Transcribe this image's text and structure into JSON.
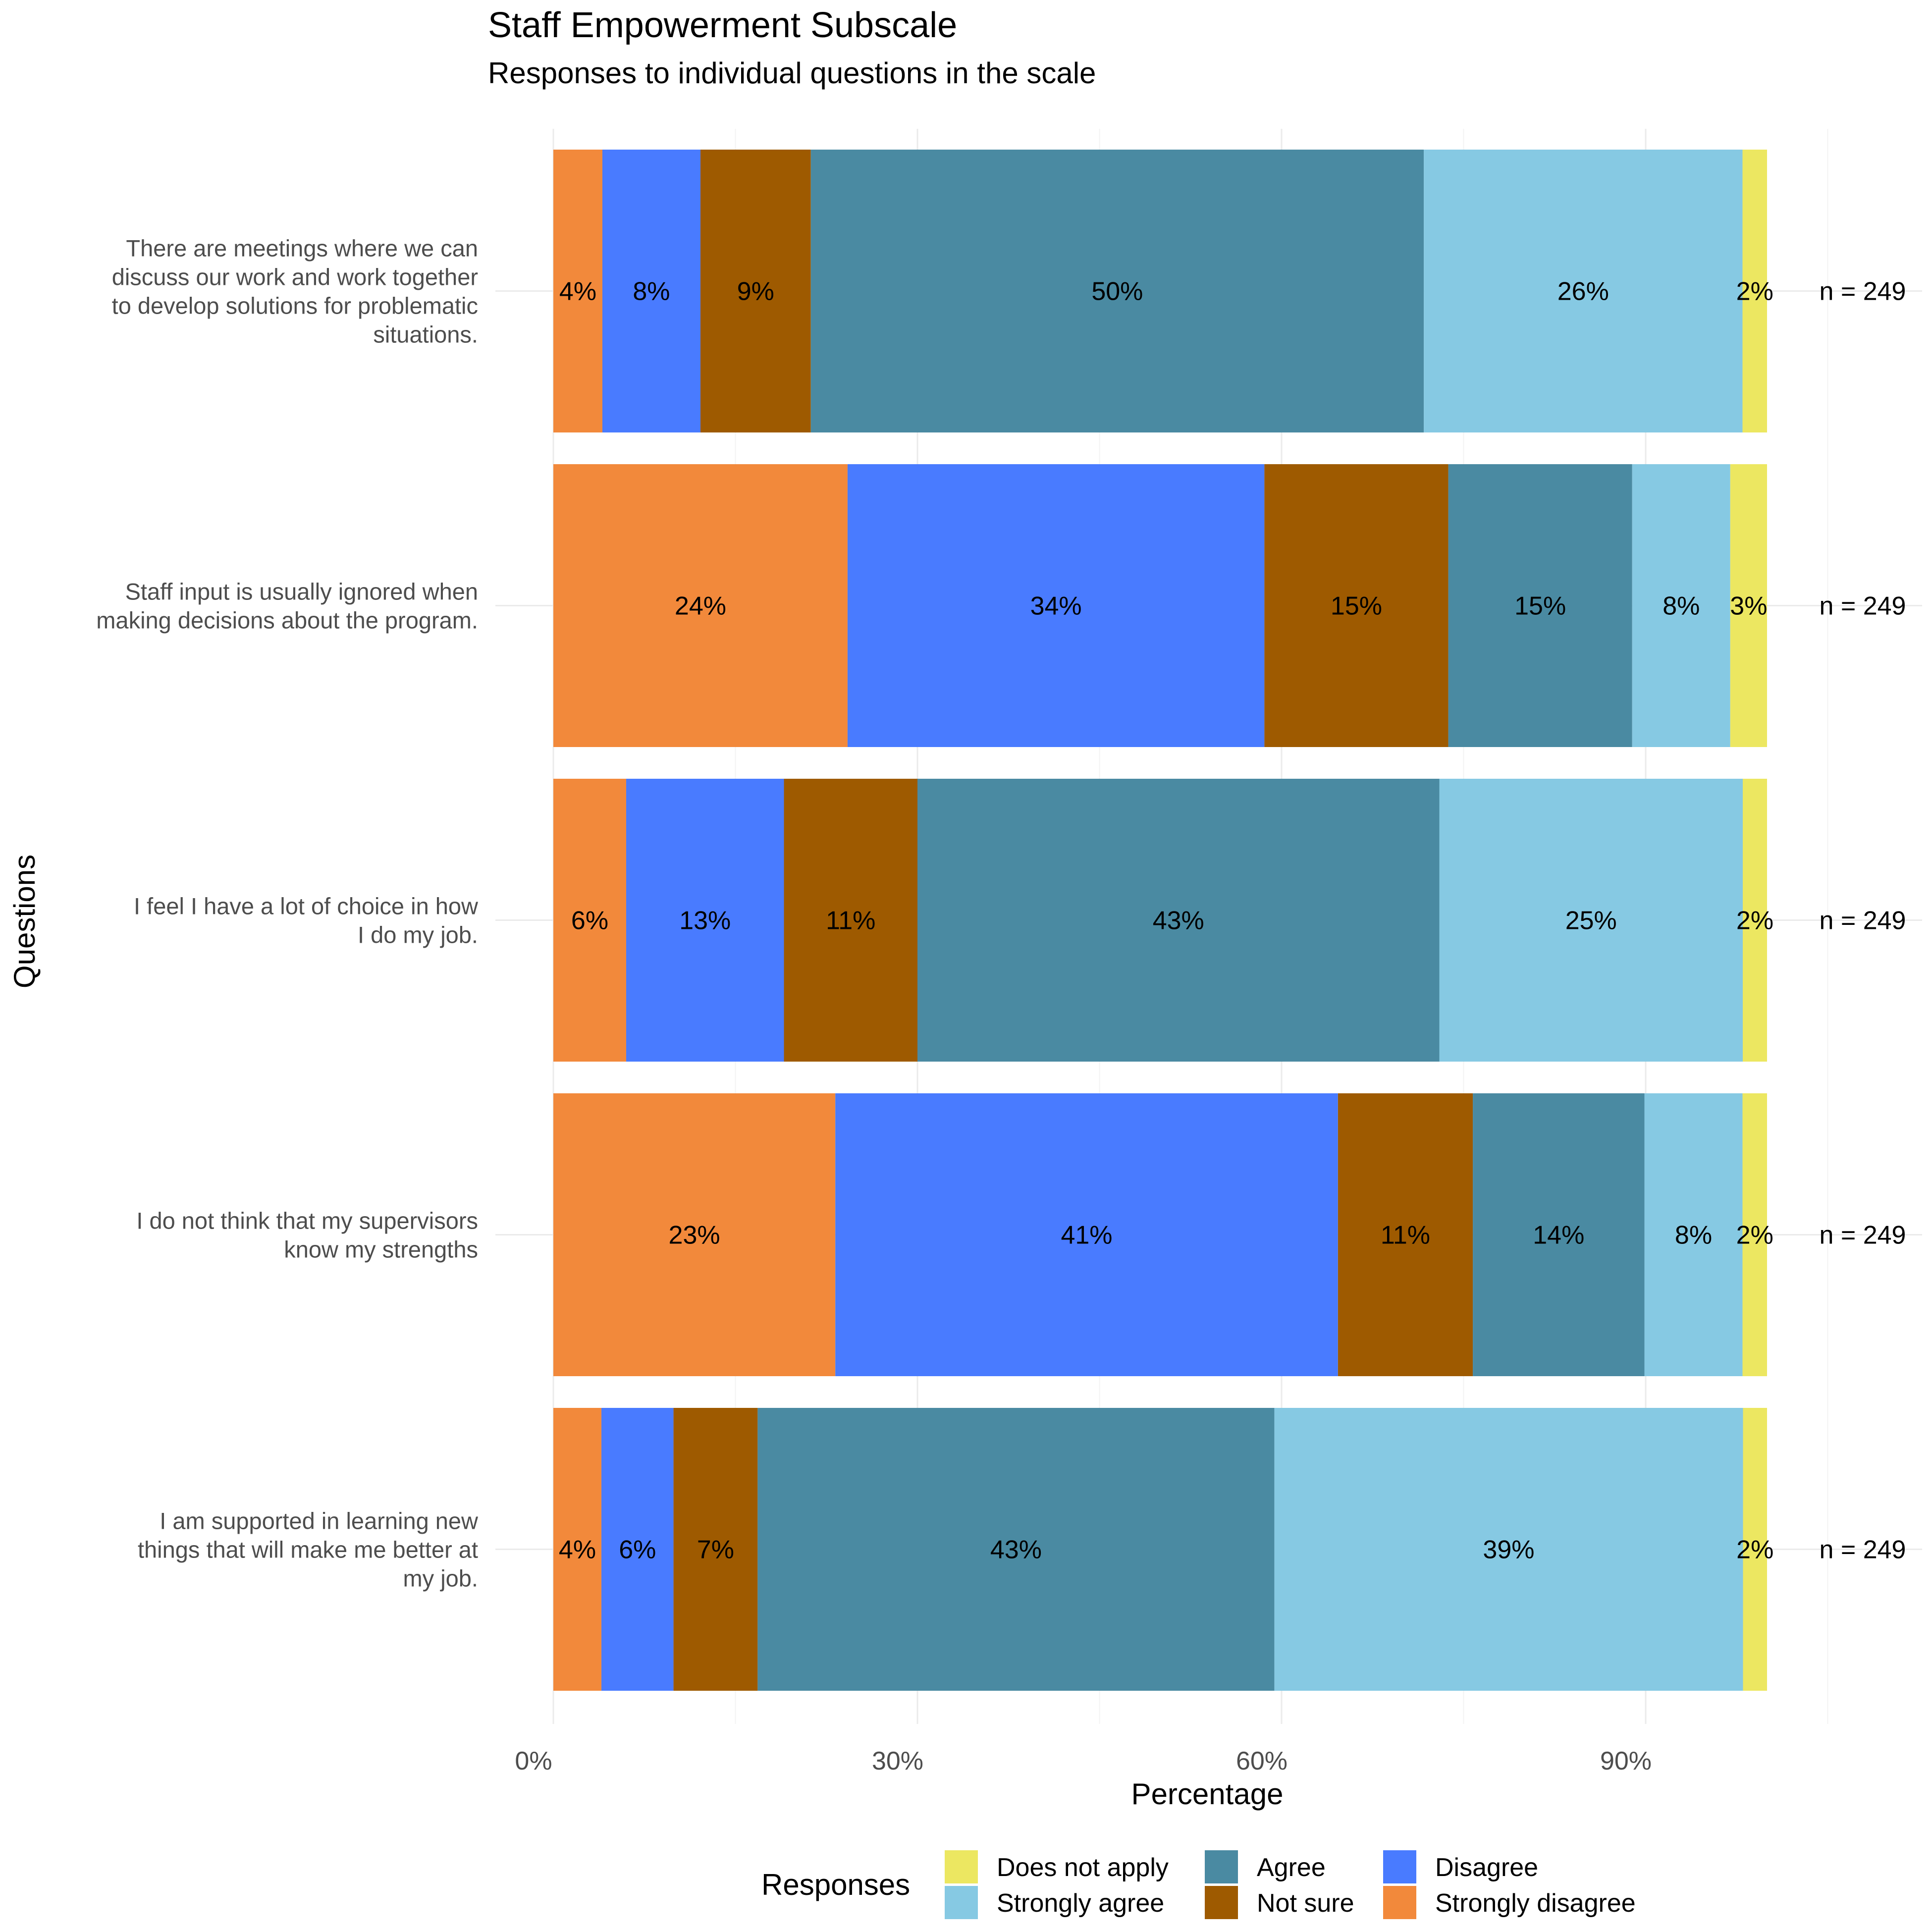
{
  "chart_data": {
    "type": "bar",
    "orientation": "horizontal",
    "stacked": true,
    "title": "Staff Empowerment Subscale",
    "subtitle": "Responses to individual questions in the scale",
    "xlabel": "Percentage",
    "ylabel": "Questions",
    "xlim": [
      0,
      100
    ],
    "x_ticks": [
      0,
      30,
      60,
      90
    ],
    "x_tick_labels": [
      "0%",
      "30%",
      "60%",
      "90%"
    ],
    "grid": true,
    "legend": {
      "title": "Responses",
      "placement": "bottom",
      "entries": [
        {
          "label": "Does not apply",
          "color": "#ECE761"
        },
        {
          "label": "Strongly agree",
          "color": "#86C9E3"
        },
        {
          "label": "Agree",
          "color": "#4A8AA2"
        },
        {
          "label": "Not sure",
          "color": "#9E5A00"
        },
        {
          "label": "Disagree",
          "color": "#497BFF"
        },
        {
          "label": "Strongly disagree",
          "color": "#F2893B"
        }
      ]
    },
    "stack_order": [
      "Strongly disagree",
      "Disagree",
      "Not sure",
      "Agree",
      "Strongly agree",
      "Does not apply"
    ],
    "series_colors": {
      "Strongly disagree": "#F2893B",
      "Disagree": "#497BFF",
      "Not sure": "#9E5A00",
      "Agree": "#4A8AA2",
      "Strongly agree": "#86C9E3",
      "Does not apply": "#ECE761"
    },
    "categories": [
      "There are meetings where we can discuss our work and work together to develop solutions for problematic situations.",
      "Staff input is usually ignored when making decisions about the program.",
      "I feel I have a lot of choice in how I do my job.",
      "I do not think that my supervisors know my strengths",
      "I am supported in learning new things that will make me better at my job."
    ],
    "category_lines": [
      [
        "There are meetings where we can",
        "discuss our work and work together",
        "to develop solutions for problematic",
        "situations."
      ],
      [
        "Staff input is usually ignored when",
        "making decisions about the program."
      ],
      [
        "I feel I have a lot of choice in how",
        "I do my job."
      ],
      [
        "I do not think that my supervisors",
        "know my strengths"
      ],
      [
        "I am supported in learning new",
        "things that will make me better at",
        "my job."
      ]
    ],
    "series": [
      {
        "name": "Strongly disagree",
        "values": [
          4,
          24,
          6,
          23,
          4
        ]
      },
      {
        "name": "Disagree",
        "values": [
          8,
          34,
          13,
          41,
          6
        ]
      },
      {
        "name": "Not sure",
        "values": [
          9,
          15,
          11,
          11,
          7
        ]
      },
      {
        "name": "Agree",
        "values": [
          50,
          15,
          43,
          14,
          43
        ]
      },
      {
        "name": "Strongly agree",
        "values": [
          26,
          8,
          25,
          8,
          39
        ]
      },
      {
        "name": "Does not apply",
        "values": [
          2,
          3,
          2,
          2,
          2
        ]
      }
    ],
    "data_labels": [
      [
        "4%",
        "8%",
        "9%",
        "50%",
        "26%",
        "2%"
      ],
      [
        "24%",
        "34%",
        "15%",
        "15%",
        "8%",
        "3%"
      ],
      [
        "6%",
        "13%",
        "11%",
        "43%",
        "25%",
        "2%"
      ],
      [
        "23%",
        "41%",
        "11%",
        "14%",
        "8%",
        "2%"
      ],
      [
        "4%",
        "6%",
        "7%",
        "43%",
        "39%",
        "2%"
      ]
    ],
    "n_labels": [
      "n = 249",
      "n = 249",
      "n = 249",
      "n = 249",
      "n = 249"
    ]
  }
}
